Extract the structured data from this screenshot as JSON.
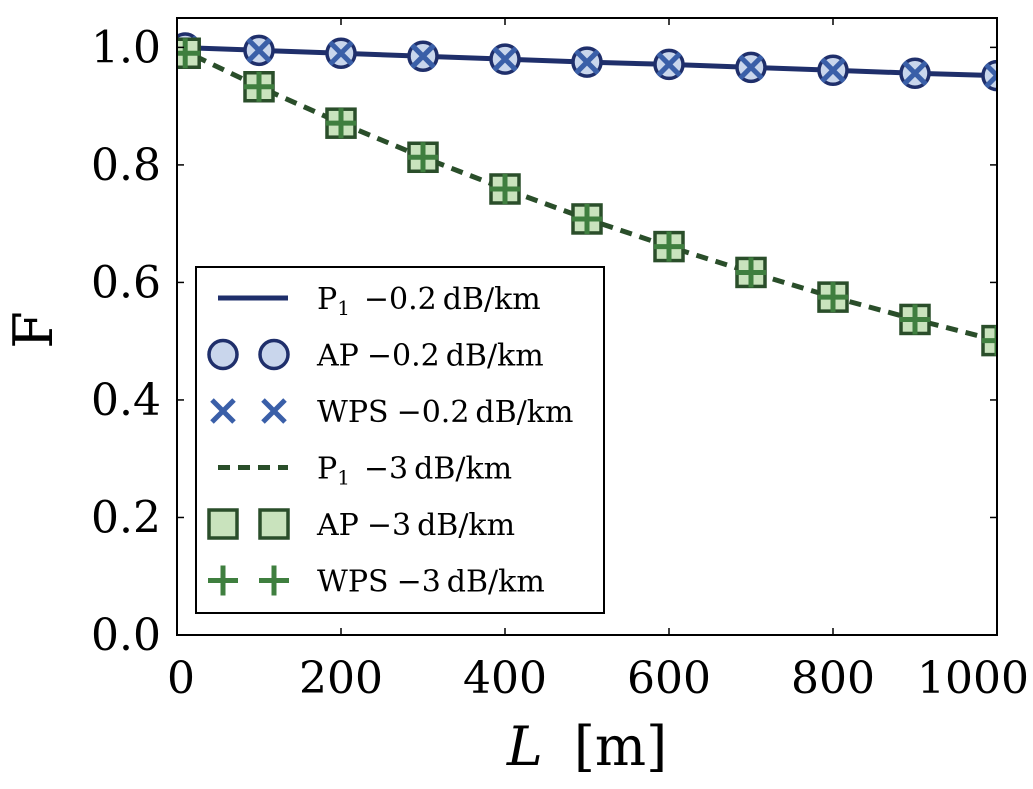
{
  "chart_data": {
    "type": "line",
    "xlabel_var": "L",
    "xlabel_unit": "[m]",
    "ylabel": "F",
    "xlim": [
      0,
      1000
    ],
    "ylim": [
      0,
      1.05
    ],
    "xticks": [
      0,
      200,
      400,
      600,
      800,
      1000
    ],
    "xtick_labels": [
      "0",
      "200",
      "400",
      "600",
      "800",
      "1000"
    ],
    "yticks": [
      0.0,
      0.2,
      0.4,
      0.6,
      0.8,
      1.0
    ],
    "ytick_labels": [
      "0.0",
      "0.2",
      "0.4",
      "0.6",
      "0.8",
      "1.0"
    ],
    "legend_position": "lower-left",
    "colors": {
      "blue_line": "#1f2f6b",
      "blue_marker": "#3a5fa8",
      "blue_fill": "#c9d6ec",
      "green_line": "#2a4e2a",
      "green_marker": "#3f7f3f",
      "green_fill": "#c9e3bd"
    },
    "x_line": [
      0,
      100,
      200,
      300,
      400,
      500,
      600,
      700,
      800,
      900,
      1000
    ],
    "x_markers": [
      10,
      100,
      200,
      300,
      400,
      500,
      600,
      700,
      800,
      900,
      1000
    ],
    "series": [
      {
        "name": "P1 -0.2 dB/km",
        "kind": "line",
        "style": "solid",
        "color_key": "blue_line",
        "values": [
          1.0,
          0.995,
          0.99,
          0.985,
          0.98,
          0.975,
          0.971,
          0.966,
          0.961,
          0.956,
          0.952
        ]
      },
      {
        "name": "AP -0.2 dB/km",
        "kind": "marker",
        "marker": "circle",
        "color_key": "blue_line",
        "fill_key": "blue_fill",
        "values": [
          0.999,
          0.995,
          0.99,
          0.985,
          0.98,
          0.975,
          0.971,
          0.966,
          0.961,
          0.956,
          0.952
        ]
      },
      {
        "name": "WPS -0.2 dB/km",
        "kind": "marker",
        "marker": "x",
        "color_key": "blue_marker",
        "values": [
          0.999,
          0.995,
          0.99,
          0.985,
          0.98,
          0.975,
          0.971,
          0.966,
          0.961,
          0.956,
          0.952
        ]
      },
      {
        "name": "P1 -3 dB/km",
        "kind": "line",
        "style": "dashed",
        "color_key": "green_line",
        "values": [
          1.0,
          0.933,
          0.871,
          0.813,
          0.759,
          0.708,
          0.661,
          0.617,
          0.575,
          0.537,
          0.501
        ]
      },
      {
        "name": "AP -3 dB/km",
        "kind": "marker",
        "marker": "square",
        "color_key": "green_line",
        "fill_key": "green_fill",
        "values": [
          0.99,
          0.933,
          0.871,
          0.813,
          0.759,
          0.708,
          0.661,
          0.617,
          0.575,
          0.537,
          0.501
        ]
      },
      {
        "name": "WPS -3 dB/km",
        "kind": "marker",
        "marker": "plus",
        "color_key": "green_marker",
        "values": [
          0.99,
          0.933,
          0.871,
          0.813,
          0.759,
          0.708,
          0.661,
          0.617,
          0.575,
          0.537,
          0.501
        ]
      }
    ],
    "legend": [
      {
        "prefix": "P",
        "sub": "1",
        "label": "−0.2 dB/km",
        "series_index": 0
      },
      {
        "prefix": "AP",
        "sub": "",
        "label": "−0.2 dB/km",
        "series_index": 1
      },
      {
        "prefix": "WPS",
        "sub": "",
        "label": "−0.2 dB/km",
        "series_index": 2
      },
      {
        "prefix": "P",
        "sub": "1",
        "label": "−3 dB/km",
        "series_index": 3
      },
      {
        "prefix": "AP",
        "sub": "",
        "label": "−3 dB/km",
        "series_index": 4
      },
      {
        "prefix": "WPS",
        "sub": "",
        "label": "−3 dB/km",
        "series_index": 5
      }
    ]
  }
}
